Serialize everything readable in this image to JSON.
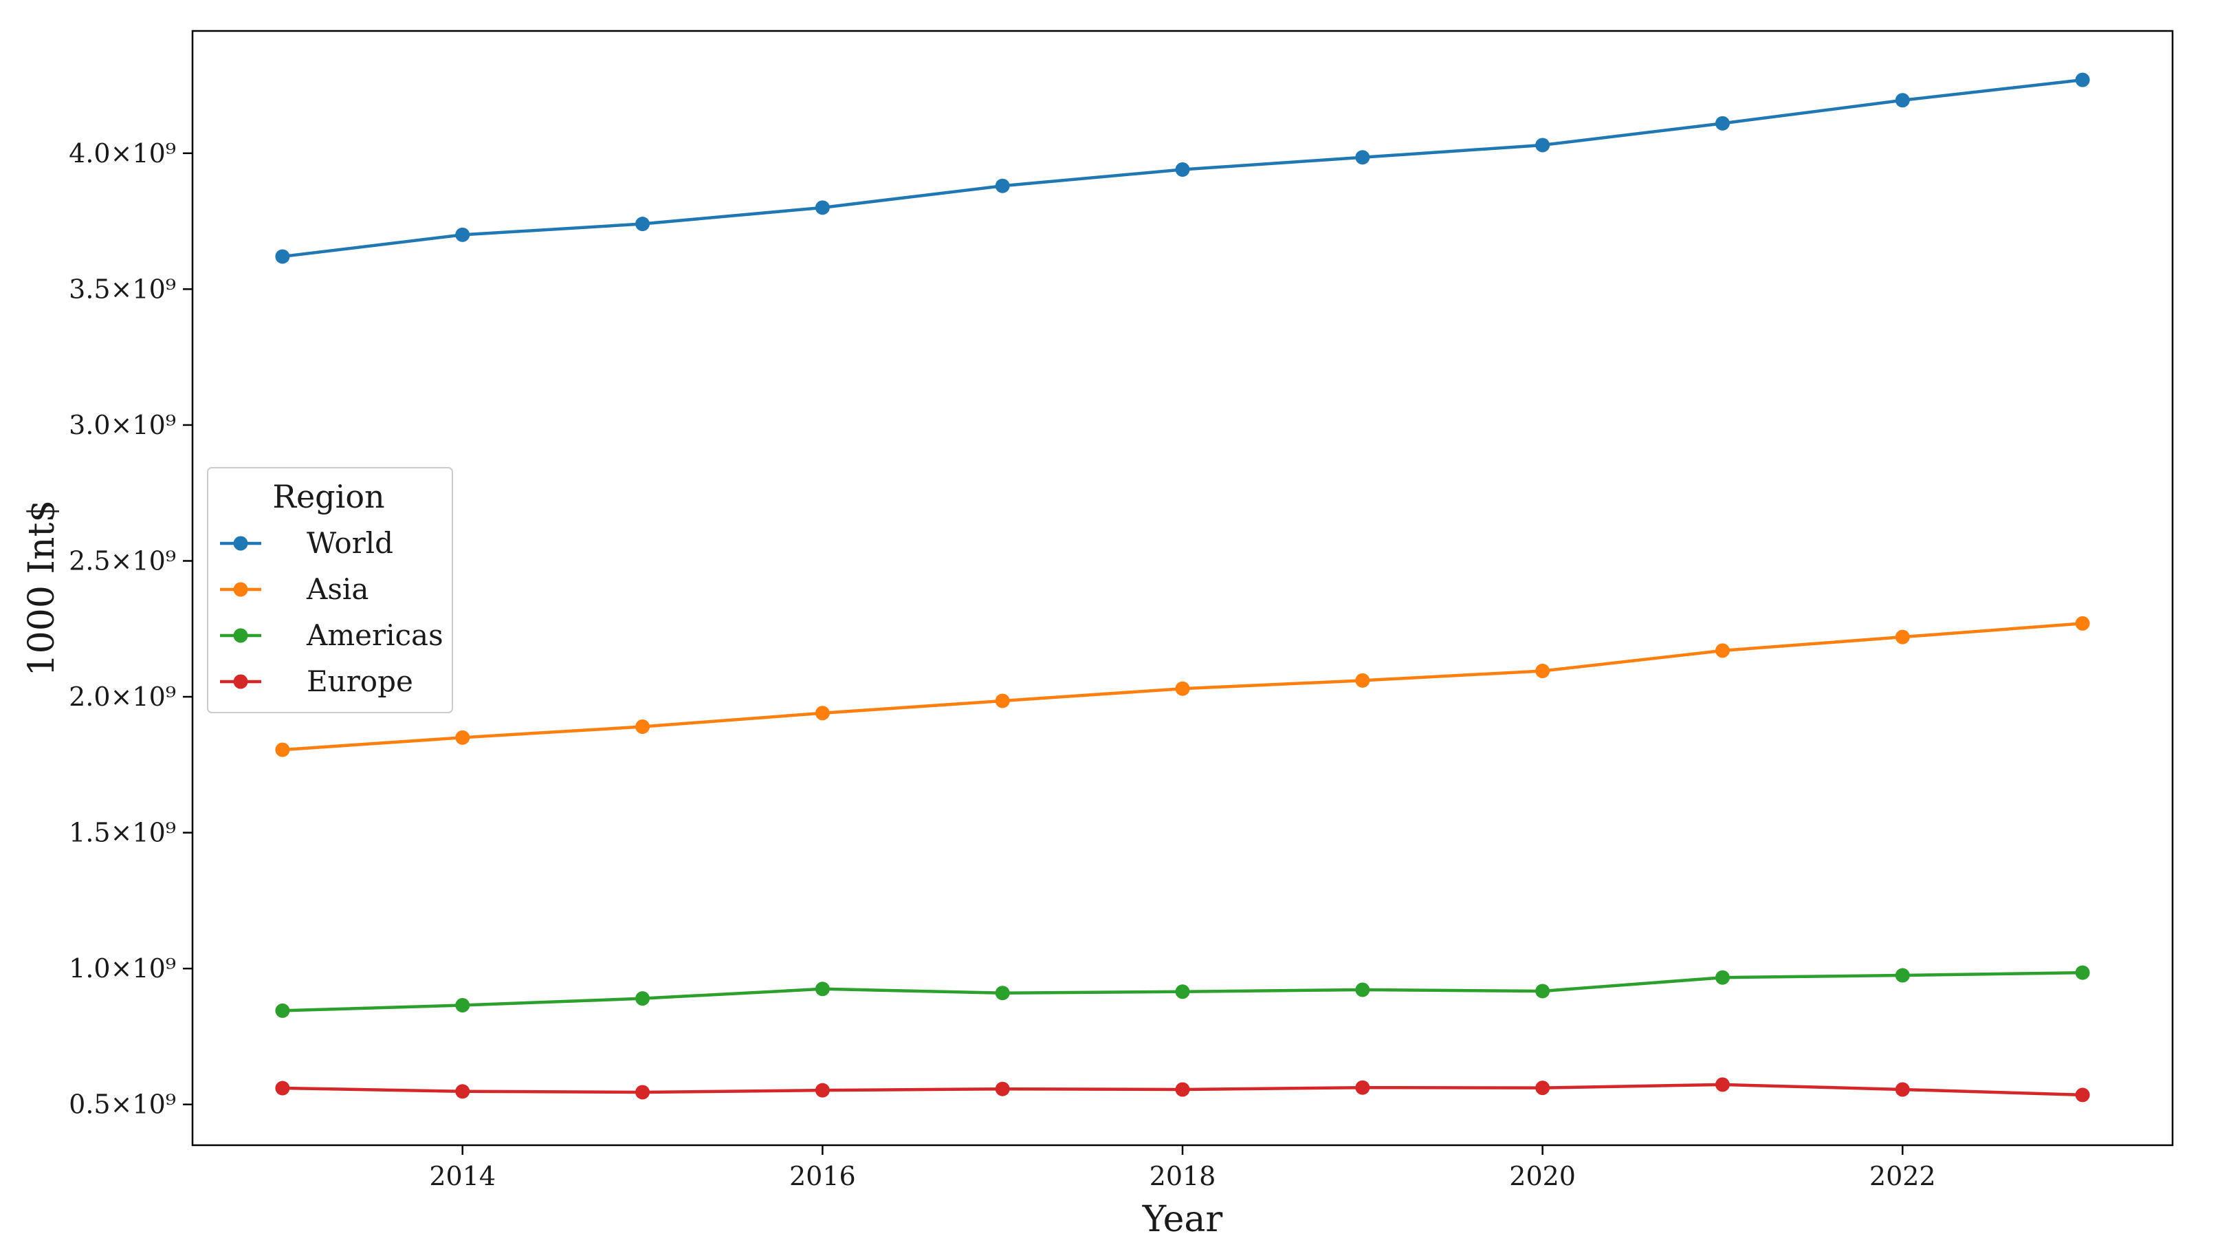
{
  "chart_data": {
    "type": "line",
    "xlabel": "Year",
    "ylabel": "1000 Int$",
    "x": [
      2013,
      2014,
      2015,
      2016,
      2017,
      2018,
      2019,
      2020,
      2021,
      2022,
      2023
    ],
    "xlim": [
      2012.5,
      2023.5
    ],
    "ylim": [
      350000000.0,
      4450000000.0
    ],
    "x_ticks": [
      2014,
      2016,
      2018,
      2020,
      2022
    ],
    "y_ticks": [
      {
        "value": 500000000.0,
        "label": "0.5×10⁹"
      },
      {
        "value": 1000000000.0,
        "label": "1.0×10⁹"
      },
      {
        "value": 1500000000.0,
        "label": "1.5×10⁹"
      },
      {
        "value": 2000000000.0,
        "label": "2.0×10⁹"
      },
      {
        "value": 2500000000.0,
        "label": "2.5×10⁹"
      },
      {
        "value": 3000000000.0,
        "label": "3.0×10⁹"
      },
      {
        "value": 3500000000.0,
        "label": "3.5×10⁹"
      },
      {
        "value": 4000000000.0,
        "label": "4.0×10⁹"
      }
    ],
    "grid": false,
    "legend": {
      "title": "Region",
      "placement": "center-left"
    },
    "series": [
      {
        "name": "World",
        "color": "#1f77b4",
        "values": [
          3620000000.0,
          3700000000.0,
          3740000000.0,
          3800000000.0,
          3880000000.0,
          3940000000.0,
          3985000000.0,
          4030000000.0,
          4110000000.0,
          4195000000.0,
          4270000000.0
        ]
      },
      {
        "name": "Asia",
        "color": "#ff7f0e",
        "values": [
          1805000000.0,
          1850000000.0,
          1890000000.0,
          1940000000.0,
          1985000000.0,
          2030000000.0,
          2060000000.0,
          2095000000.0,
          2170000000.0,
          2220000000.0,
          2270000000.0
        ]
      },
      {
        "name": "Americas",
        "color": "#2ca02c",
        "values": [
          845000000.0,
          865000000.0,
          890000000.0,
          925000000.0,
          910000000.0,
          915000000.0,
          922000000.0,
          917000000.0,
          967000000.0,
          975000000.0,
          985000000.0
        ]
      },
      {
        "name": "Europe",
        "color": "#d62728",
        "values": [
          560000000.0,
          548000000.0,
          545000000.0,
          552000000.0,
          557000000.0,
          555000000.0,
          562000000.0,
          561000000.0,
          573000000.0,
          555000000.0,
          535000000.0
        ]
      }
    ]
  }
}
